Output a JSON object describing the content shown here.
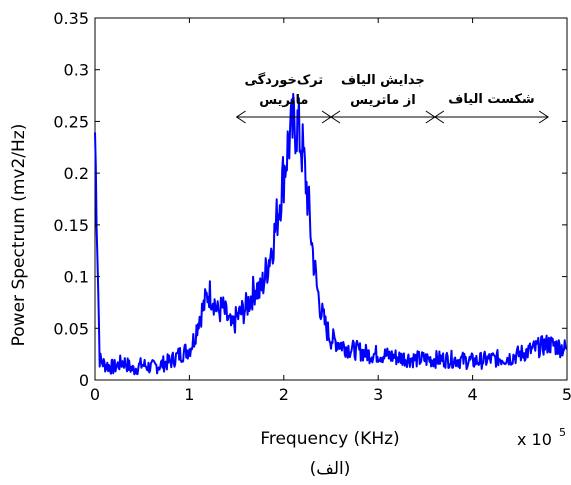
{
  "chart_data": {
    "type": "line",
    "title": "",
    "xlabel": "Frequency (KHz)",
    "ylabel": "Power Spectrum (mv2/Hz)",
    "x_multiplier_label": "x 10",
    "x_multiplier_exponent": "5",
    "caption": "(الف)",
    "xlim": [
      0,
      5
    ],
    "ylim": [
      0,
      0.35
    ],
    "xticks": [
      "0",
      "1",
      "2",
      "3",
      "4",
      "5"
    ],
    "yticks": [
      "0",
      "0.05",
      "0.1",
      "0.15",
      "0.2",
      "0.25",
      "0.3",
      "0.35"
    ],
    "grid": false,
    "line_color": "#0000ff",
    "series": [
      {
        "x": [
          0.0,
          0.05,
          0.1,
          0.2,
          0.3,
          0.4,
          0.5,
          0.6,
          0.7,
          0.8,
          0.9,
          1.0,
          1.05,
          1.1,
          1.15,
          1.2,
          1.25,
          1.3,
          1.35,
          1.4,
          1.45,
          1.5,
          1.55,
          1.6,
          1.65,
          1.7,
          1.75,
          1.8,
          1.85,
          1.9,
          1.95,
          2.0,
          2.05,
          2.1,
          2.13,
          2.16,
          2.2,
          2.25,
          2.3,
          2.35,
          2.4,
          2.45,
          2.5,
          2.6,
          2.7,
          2.8,
          2.9,
          3.0,
          3.2,
          3.4,
          3.6,
          3.8,
          4.0,
          4.2,
          4.4,
          4.6,
          4.8,
          5.0
        ],
        "y": [
          0.24,
          0.02,
          0.015,
          0.012,
          0.018,
          0.01,
          0.015,
          0.012,
          0.015,
          0.018,
          0.025,
          0.03,
          0.04,
          0.06,
          0.07,
          0.085,
          0.08,
          0.065,
          0.07,
          0.06,
          0.05,
          0.06,
          0.065,
          0.07,
          0.08,
          0.09,
          0.085,
          0.1,
          0.12,
          0.14,
          0.17,
          0.2,
          0.23,
          0.245,
          0.25,
          0.24,
          0.22,
          0.18,
          0.13,
          0.09,
          0.065,
          0.05,
          0.04,
          0.035,
          0.03,
          0.028,
          0.025,
          0.025,
          0.022,
          0.02,
          0.02,
          0.02,
          0.018,
          0.02,
          0.022,
          0.028,
          0.035,
          0.03
        ]
      }
    ],
    "annotations": [
      {
        "lines": [
          "ترک‌خوردگی",
          "ماتریس"
        ],
        "x_from": 1.5,
        "x_to": 2.5,
        "y": 0.25
      },
      {
        "lines": [
          "جدایش الیاف",
          "از ماتریس"
        ],
        "x_from": 2.5,
        "x_to": 3.6,
        "y": 0.25
      },
      {
        "lines": [
          "شکست الیاف"
        ],
        "x_from": 3.6,
        "x_to": 4.8,
        "y": 0.25
      }
    ]
  }
}
